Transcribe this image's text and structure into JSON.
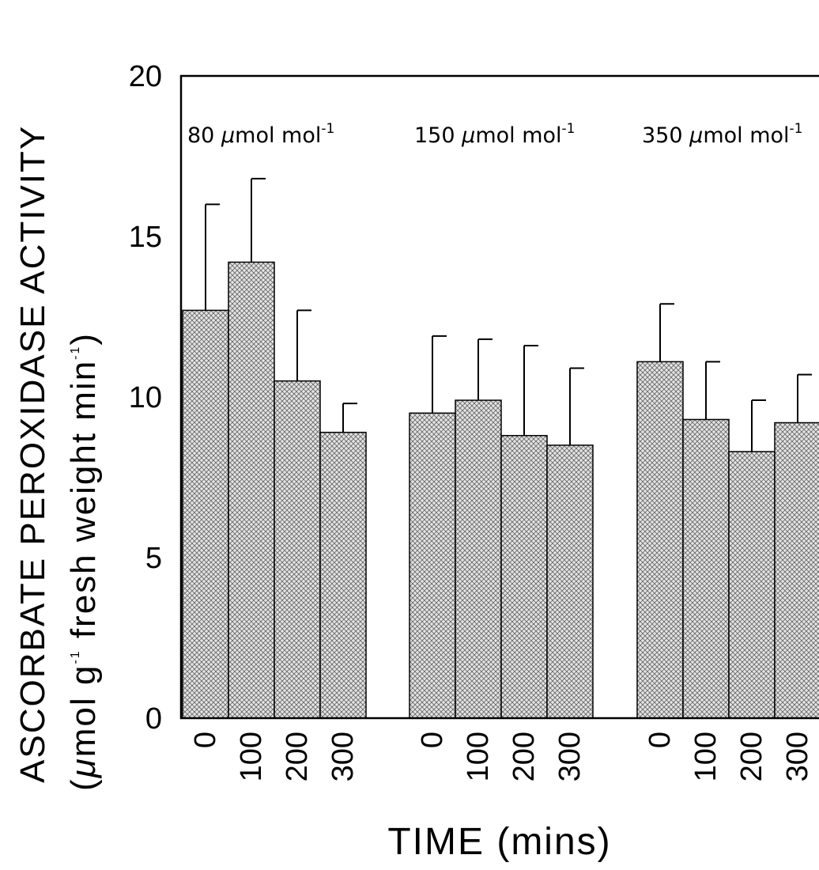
{
  "chart_data": {
    "type": "bar",
    "ylabel_line1": "ASCORBATE PEROXIDASE ACTIVITY",
    "ylabel_line2_prefix": "(",
    "ylabel_mu": "μ",
    "ylabel_line2_a": "mol g",
    "ylabel_sup1": "-1",
    "ylabel_line2_b": " fresh weight min",
    "ylabel_sup2": "-1",
    "ylabel_line2_suffix": ")",
    "xlabel": "TIME (mins)",
    "ylim": [
      0,
      20
    ],
    "yticks": [
      0,
      5,
      10,
      15,
      20
    ],
    "categories": [
      "0",
      "100",
      "200",
      "300"
    ],
    "groups": [
      {
        "label_num": "80",
        "label_unit": "mol mol",
        "label_sup": "-1",
        "values": [
          12.7,
          14.2,
          10.5,
          8.9
        ],
        "errors": [
          3.3,
          2.6,
          2.2,
          0.9
        ]
      },
      {
        "label_num": "150",
        "label_unit": "mol mol",
        "label_sup": "-1",
        "values": [
          9.5,
          9.9,
          8.8,
          8.5
        ],
        "errors": [
          2.4,
          1.9,
          2.8,
          2.4
        ]
      },
      {
        "label_num": "350",
        "label_unit": "mol mol",
        "label_sup": "-1",
        "values": [
          11.1,
          9.3,
          8.3,
          9.2
        ],
        "errors": [
          1.8,
          1.8,
          1.6,
          1.5
        ]
      }
    ],
    "bar_fill": "#cfcfcf",
    "grid": false
  }
}
